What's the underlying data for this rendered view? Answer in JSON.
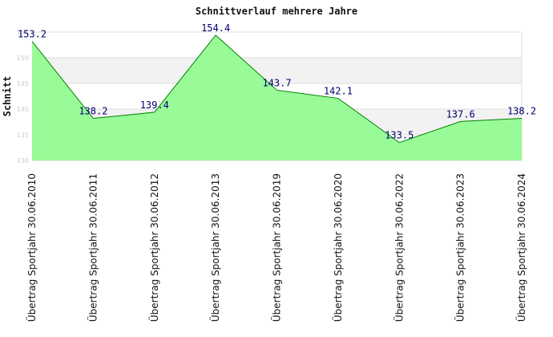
{
  "chart_data": {
    "type": "area",
    "title": "Schnittverlauf mehrere Jahre",
    "xlabel": "",
    "ylabel": "Schnitt",
    "categories": [
      "Übertrag Sportjahr 30.06.2010",
      "Übertrag Sportjahr 30.06.2011",
      "Übertrag Sportjahr 30.06.2012",
      "Übertrag Sportjahr 30.06.2013",
      "Übertrag Sportjahr 30.06.2019",
      "Übertrag Sportjahr 30.06.2020",
      "Übertrag Sportjahr 30.06.2022",
      "Übertrag Sportjahr 30.06.2023",
      "Übertrag Sportjahr 30.06.2024"
    ],
    "values": [
      153.2,
      138.2,
      139.4,
      154.4,
      143.7,
      142.1,
      133.5,
      137.6,
      138.2
    ],
    "data_labels": [
      "153.2",
      "138.2",
      "139.4",
      "154.4",
      "143.7",
      "142.1",
      "133.5",
      "137.6",
      "138.2"
    ],
    "yticks": [
      130,
      135,
      140,
      145,
      150,
      155
    ],
    "ytick_labels": [
      "130",
      "135",
      "140",
      "145",
      "150",
      "155"
    ],
    "ylim": [
      130,
      155
    ],
    "grid": true,
    "legend": "none",
    "colors": {
      "fill": "#98fb98",
      "line": "#008000",
      "band": "#f2f2f2",
      "grid": "#dddddd",
      "data_label": "#00006e"
    }
  }
}
